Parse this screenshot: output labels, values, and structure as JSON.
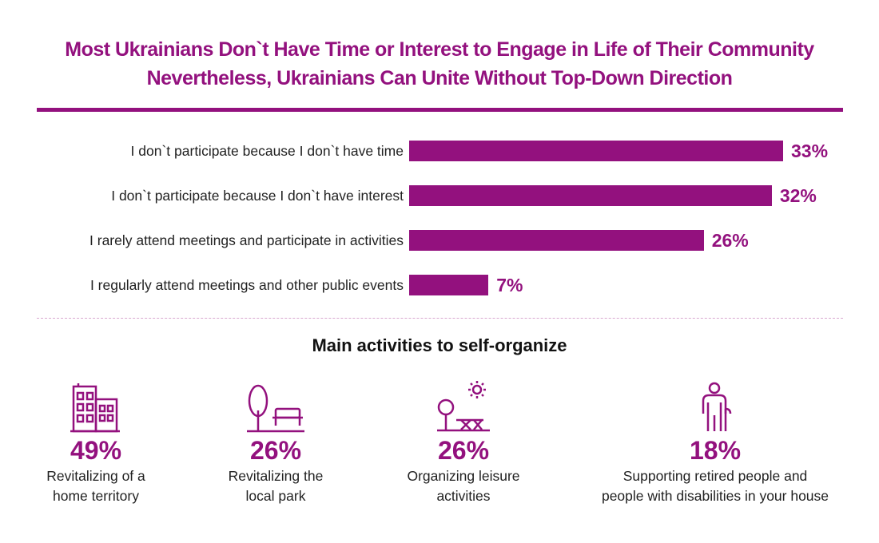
{
  "title_line1": "Most Ukrainians Don`t Have Time or Interest to Engage in Life of Their Community",
  "title_line2": "Nevertheless, Ukrainians Can Unite Without Top-Down Direction",
  "accent_color": "#93117e",
  "chart_data": {
    "type": "bar",
    "orientation": "horizontal",
    "categories": [
      "I don`t participate because I don`t have time",
      "I don`t participate because I don`t have interest",
      "I rarely attend meetings and participate in activities",
      "I regularly attend meetings and other public events"
    ],
    "values": [
      33,
      32,
      26,
      7
    ],
    "value_labels": [
      "33%",
      "32%",
      "26%",
      "7%"
    ],
    "unit": "%",
    "xlim": [
      0,
      35
    ],
    "grid": false,
    "color": "#93117e"
  },
  "activities_heading": "Main activities to self-organize",
  "activities": [
    {
      "icon": "apartment-building-icon",
      "value": "49%",
      "line1": "Revitalizing of a",
      "line2": "home territory"
    },
    {
      "icon": "park-tree-bench-icon",
      "value": "26%",
      "line1": "Revitalizing the",
      "line2": "local park"
    },
    {
      "icon": "picnic-table-sun-icon",
      "value": "26%",
      "line1": "Organizing leisure",
      "line2": "activities"
    },
    {
      "icon": "elderly-person-cane-icon",
      "value": "18%",
      "line1": "Supporting retired people and",
      "line2": "people with disabilities in your house"
    }
  ]
}
